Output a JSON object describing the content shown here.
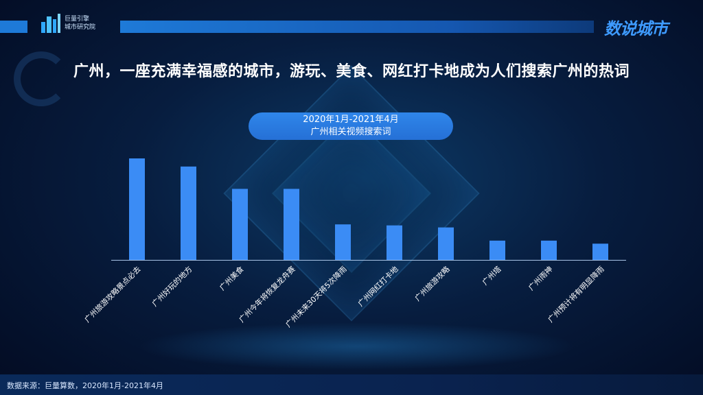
{
  "header": {
    "logo_line1": "巨量引擎",
    "logo_line2": "城市研究院",
    "brand": "数说城市"
  },
  "headline": "广州，一座充满幸福感的城市，游玩、美食、网红打卡地成为人们搜索广州的热词",
  "footer": {
    "source": "数据来源：巨量算数，2020年1月-2021年4月"
  },
  "colors": {
    "bar": "#3b8cf5",
    "accent": "#1e7ad8"
  },
  "chart_data": {
    "type": "bar",
    "title": "2020年1月-2021年4月",
    "subtitle": "广州相关视频搜索词",
    "xlabel": "",
    "ylabel": "",
    "categories": [
      "广州旅游攻略景点必去",
      "广州好玩的地方",
      "广州美食",
      "广州今年将恢复龙舟赛",
      "广州未来30天将5次降雨",
      "广州网红打卡地",
      "广州旅游攻略",
      "广州塔",
      "广州雨神",
      "广州预计将有明显降雨"
    ],
    "values": [
      100,
      92,
      70,
      70,
      35,
      34,
      32,
      19,
      19,
      16
    ],
    "ylim": [
      0,
      105
    ],
    "grid": false,
    "legend": "none"
  }
}
